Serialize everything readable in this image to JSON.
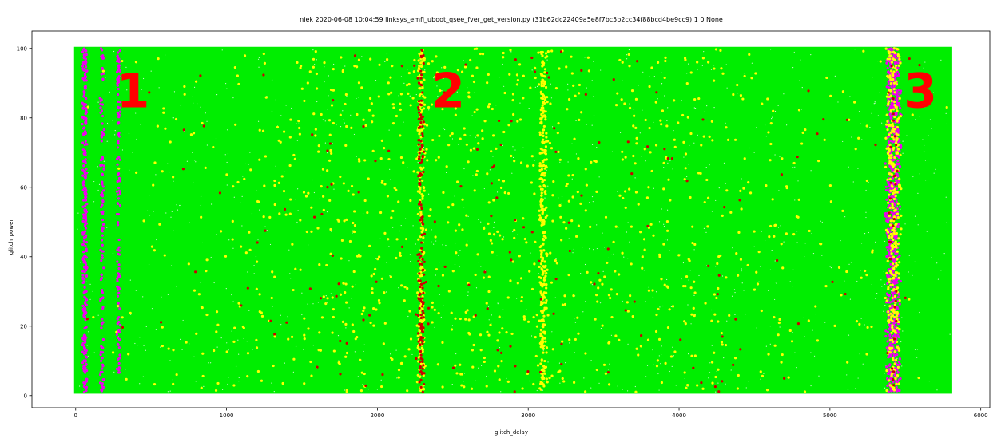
{
  "chart_data": {
    "type": "scatter",
    "title": "niek 2020-06-08 10:04:59 linksys_emfi_uboot_qsee_fver_get_version.py (31b62dc22409a5e8f7bc5b2cc34f88bcd4be9cc9) 1 0 None",
    "xlabel": "glitch_delay",
    "ylabel": "glitch_power",
    "xlim": [
      -290,
      6060
    ],
    "ylim": [
      -3.5,
      105
    ],
    "xticks": [
      0,
      1000,
      2000,
      3000,
      4000,
      5000,
      6000
    ],
    "yticks": [
      0,
      20,
      40,
      60,
      80,
      100
    ],
    "grid": false,
    "background_fill": {
      "x": [
        0,
        5800
      ],
      "y": [
        1,
        100
      ],
      "color": "#00ee00",
      "description_class": "expected"
    },
    "series": [
      {
        "color": "#ee00ee",
        "bands": [
          {
            "x_center": 60,
            "x_halfwidth": 18,
            "y": [
              1,
              100
            ],
            "density": 0.9
          },
          {
            "x_center": 175,
            "x_halfwidth": 15,
            "y": [
              1,
              100
            ],
            "density": 0.45
          },
          {
            "x_center": 285,
            "x_halfwidth": 14,
            "y": [
              2,
              100
            ],
            "density": 0.5
          },
          {
            "x_center": 5420,
            "x_halfwidth": 55,
            "y": [
              1,
              100
            ],
            "density": 0.75
          }
        ]
      },
      {
        "color": "#ffff00",
        "bands": [
          {
            "x_center": 2290,
            "x_halfwidth": 28,
            "y": [
              1,
              100
            ],
            "density": 0.45
          },
          {
            "x_center": 3100,
            "x_halfwidth": 30,
            "y": [
              1,
              100
            ],
            "density": 0.55
          },
          {
            "x_center": 5420,
            "x_halfwidth": 55,
            "y": [
              1,
              100
            ],
            "density": 0.35
          },
          {
            "x_center": 2900,
            "x_halfwidth": 2900,
            "y": [
              1,
              100
            ],
            "density": 0.02
          }
        ]
      },
      {
        "color": "#cc0000",
        "bands": [
          {
            "x_center": 2290,
            "x_halfwidth": 25,
            "y": [
              1,
              100
            ],
            "density": 0.35
          },
          {
            "x_center": 5420,
            "x_halfwidth": 40,
            "y": [
              1,
              100
            ],
            "density": 0.04
          },
          {
            "x_center": 2900,
            "x_halfwidth": 2900,
            "y": [
              1,
              100
            ],
            "density": 0.003
          }
        ]
      }
    ],
    "annotations": [
      {
        "text": "1",
        "x": 380,
        "y": 90
      },
      {
        "text": "2",
        "x": 2470,
        "y": 90
      },
      {
        "text": "3",
        "x": 5600,
        "y": 90
      }
    ]
  }
}
